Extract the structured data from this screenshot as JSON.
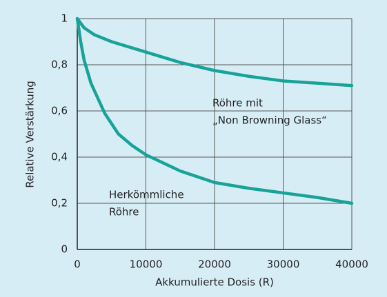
{
  "chart_data": {
    "type": "line",
    "x_label": "Akkumulierte Dosis (R)",
    "y_label": "Relative Verstärkung",
    "xlim": [
      0,
      40000
    ],
    "xticks": [
      0,
      10000,
      20000,
      30000,
      40000
    ],
    "ylim": [
      0,
      1
    ],
    "yticks": [
      0,
      {
        "value": 0.2,
        "label": "0,2"
      },
      {
        "value": 0.4,
        "label": "0,4"
      },
      {
        "value": 0.6,
        "label": "0,6"
      },
      {
        "value": 0.8,
        "label": "0,8"
      },
      1
    ],
    "grid": true,
    "series": [
      {
        "color": "#17a398",
        "x": [
          0,
          1000,
          2500,
          5000,
          10000,
          15000,
          20000,
          25000,
          30000,
          35000,
          40000
        ],
        "values": [
          1,
          0.96,
          0.93,
          0.9,
          0.855,
          0.81,
          0.775,
          0.75,
          0.73,
          0.72,
          0.71
        ]
      },
      {
        "color": "#17a398",
        "x": [
          0,
          500,
          1000,
          2000,
          4000,
          6000,
          8000,
          10000,
          15000,
          20000,
          25000,
          30000,
          35000,
          40000
        ],
        "values": [
          1,
          0.9,
          0.82,
          0.72,
          0.59,
          0.5,
          0.45,
          0.41,
          0.34,
          0.29,
          0.265,
          0.245,
          0.225,
          0.2
        ]
      }
    ],
    "annotations": [
      {
        "lines": [
          "Röhre mit",
          "„Non Browning Glass“"
        ]
      },
      {
        "lines": [
          "Herkömmliche",
          "Röhre"
        ]
      }
    ]
  }
}
